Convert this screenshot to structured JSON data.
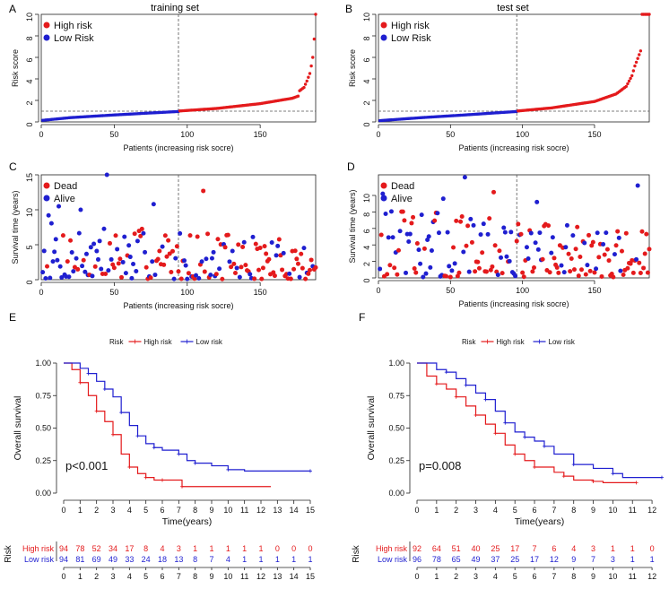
{
  "colors": {
    "high": "#e41a1c",
    "low": "#1f1fd0",
    "axis": "#222222",
    "ref": "#555555"
  },
  "panels": {
    "A": {
      "letter": "A",
      "title": "training set"
    },
    "B": {
      "letter": "B",
      "title": "test set"
    },
    "C": {
      "letter": "C"
    },
    "D": {
      "letter": "D"
    },
    "E": {
      "letter": "E"
    },
    "F": {
      "letter": "F"
    }
  },
  "chart_data": [
    {
      "id": "A",
      "type": "scatter",
      "title": "training set",
      "xlabel": "Patients (increasing risk socre)",
      "ylabel": "Risk score",
      "xlim": [
        0,
        188
      ],
      "ylim": [
        0,
        10
      ],
      "xticks": [
        "0",
        "50",
        "100",
        "150"
      ],
      "xtick_values": [
        0,
        50,
        100,
        150
      ],
      "yticks": [
        "0",
        "2",
        "4",
        "6",
        "8",
        "10"
      ],
      "ytick_values": [
        0,
        2,
        4,
        6,
        8,
        10
      ],
      "legend": [
        "High risk",
        "Low Risk"
      ],
      "cutoff_x": 94,
      "cutoff_y": 1.0,
      "n": 188,
      "series": [
        {
          "name": "Low Risk",
          "knots": [
            [
              1,
              0.15
            ],
            [
              20,
              0.4
            ],
            [
              50,
              0.65
            ],
            [
              94,
              0.97
            ]
          ]
        },
        {
          "name": "High risk",
          "knots": [
            [
              95,
              1.02
            ],
            [
              120,
              1.25
            ],
            [
              150,
              1.7
            ],
            [
              172,
              2.2
            ],
            [
              176,
              2.4
            ],
            [
              177,
              2.9
            ],
            [
              180,
              3.2
            ],
            [
              182,
              3.8
            ],
            [
              184,
              4.5
            ],
            [
              185,
              5.2
            ],
            [
              186,
              6.0
            ],
            [
              187,
              7.7
            ],
            [
              188,
              10.0
            ]
          ]
        }
      ]
    },
    {
      "id": "B",
      "type": "scatter",
      "title": "test set",
      "xlabel": "Patients (increasing risk socre)",
      "ylabel": "Risk score",
      "xlim": [
        0,
        188
      ],
      "ylim": [
        0,
        10
      ],
      "xticks": [
        "0",
        "50",
        "100",
        "150"
      ],
      "xtick_values": [
        0,
        50,
        100,
        150
      ],
      "yticks": [
        "0",
        "2",
        "4",
        "6",
        "8",
        "10"
      ],
      "ytick_values": [
        0,
        2,
        4,
        6,
        8,
        10
      ],
      "legend": [
        "High risk",
        "Low Risk"
      ],
      "cutoff_x": 96,
      "cutoff_y": 1.0,
      "n": 188,
      "series": [
        {
          "name": "Low Risk",
          "knots": [
            [
              1,
              0.12
            ],
            [
              30,
              0.4
            ],
            [
              60,
              0.65
            ],
            [
              96,
              0.97
            ]
          ]
        },
        {
          "name": "High risk",
          "knots": [
            [
              97,
              1.02
            ],
            [
              120,
              1.3
            ],
            [
              150,
              1.9
            ],
            [
              165,
              2.6
            ],
            [
              172,
              3.3
            ],
            [
              176,
              4.3
            ],
            [
              178,
              5.2
            ],
            [
              180,
              5.9
            ],
            [
              182,
              6.6
            ],
            [
              183,
              10.0
            ],
            [
              188,
              10.0
            ]
          ]
        }
      ]
    },
    {
      "id": "C",
      "type": "scatter",
      "xlabel": "Patients (increasing risk socre)",
      "ylabel": "Survival time (years)",
      "xlim": [
        0,
        188
      ],
      "ylim": [
        0,
        15
      ],
      "xticks": [
        "0",
        "50",
        "100",
        "150"
      ],
      "xtick_values": [
        0,
        50,
        100,
        150
      ],
      "yticks": [
        "0",
        "5",
        "10",
        "15"
      ],
      "ytick_values": [
        0,
        5,
        10,
        15
      ],
      "legend": [
        "Dead",
        "Alive"
      ],
      "cutoff_x": 94,
      "n": 188,
      "seed": 7,
      "ymax_typical": 8,
      "outliers": [
        [
          45,
          15,
          "alive"
        ],
        [
          111,
          12.7,
          "dead"
        ],
        [
          12,
          10.5,
          "alive"
        ],
        [
          27,
          10.0,
          "alive"
        ],
        [
          77,
          10.8,
          "alive"
        ],
        [
          5,
          9.2,
          "alive"
        ]
      ]
    },
    {
      "id": "D",
      "type": "scatter",
      "xlabel": "Patients (increasing risk socre)",
      "ylabel": "Survival time (years)",
      "xlim": [
        0,
        188
      ],
      "ylim": [
        0,
        12.5
      ],
      "xticks": [
        "0",
        "50",
        "100",
        "150"
      ],
      "xtick_values": [
        0,
        50,
        100,
        150
      ],
      "yticks": [
        "0",
        "2",
        "4",
        "6",
        "8",
        "10"
      ],
      "ytick_values": [
        0,
        2,
        4,
        6,
        8,
        10
      ],
      "legend": [
        "Dead",
        "Alive"
      ],
      "cutoff_x": 96,
      "n": 188,
      "seed": 13,
      "ymax_typical": 8,
      "outliers": [
        [
          60,
          12.2,
          "alive"
        ],
        [
          3,
          10.2,
          "alive"
        ],
        [
          80,
          10.4,
          "dead"
        ],
        [
          180,
          11.2,
          "alive"
        ],
        [
          45,
          9.6,
          "alive"
        ],
        [
          110,
          9.2,
          "alive"
        ]
      ]
    },
    {
      "id": "E",
      "type": "line",
      "subtype": "kaplan-meier",
      "xlabel": "Time(years)",
      "ylabel": "Overall survival",
      "xlim": [
        0,
        15
      ],
      "ylim": [
        0,
        1
      ],
      "xticks": [
        "0",
        "1",
        "2",
        "3",
        "4",
        "5",
        "6",
        "7",
        "8",
        "9",
        "10",
        "11",
        "12",
        "13",
        "14",
        "15"
      ],
      "yticks": [
        "0.00",
        "0.25",
        "0.50",
        "0.75",
        "1.00"
      ],
      "ytick_values": [
        0,
        0.25,
        0.5,
        0.75,
        1.0
      ],
      "legend_title": "Risk",
      "legend": [
        "High risk",
        "Low risk"
      ],
      "pvalue": "p<0.001",
      "series": [
        {
          "name": "High risk",
          "points": [
            [
              0,
              1.0
            ],
            [
              0.5,
              0.95
            ],
            [
              1,
              0.85
            ],
            [
              1.5,
              0.75
            ],
            [
              2,
              0.63
            ],
            [
              2.5,
              0.55
            ],
            [
              3,
              0.45
            ],
            [
              3.5,
              0.3
            ],
            [
              4,
              0.2
            ],
            [
              4.5,
              0.15
            ],
            [
              5,
              0.12
            ],
            [
              5.5,
              0.1
            ],
            [
              6,
              0.1
            ],
            [
              7,
              0.1
            ],
            [
              7.2,
              0.05
            ],
            [
              12.6,
              0.05
            ]
          ]
        },
        {
          "name": "Low risk",
          "points": [
            [
              0,
              1.0
            ],
            [
              1,
              0.96
            ],
            [
              1.5,
              0.92
            ],
            [
              2,
              0.86
            ],
            [
              2.5,
              0.8
            ],
            [
              3,
              0.74
            ],
            [
              3.5,
              0.62
            ],
            [
              4,
              0.52
            ],
            [
              4.5,
              0.44
            ],
            [
              5,
              0.38
            ],
            [
              5.5,
              0.35
            ],
            [
              6,
              0.33
            ],
            [
              7,
              0.3
            ],
            [
              7.5,
              0.25
            ],
            [
              8,
              0.23
            ],
            [
              9,
              0.21
            ],
            [
              10,
              0.18
            ],
            [
              11,
              0.17
            ],
            [
              15,
              0.17
            ]
          ]
        }
      ],
      "risk_table": {
        "label": "Risk",
        "rows": [
          {
            "name": "High risk",
            "values": [
              "94",
              "78",
              "52",
              "34",
              "17",
              "8",
              "4",
              "3",
              "1",
              "1",
              "1",
              "1",
              "1",
              "0",
              "0",
              "0"
            ]
          },
          {
            "name": "Low risk",
            "values": [
              "94",
              "81",
              "69",
              "49",
              "33",
              "24",
              "18",
              "13",
              "8",
              "7",
              "4",
              "1",
              "1",
              "1",
              "1",
              "1"
            ]
          }
        ]
      }
    },
    {
      "id": "F",
      "type": "line",
      "subtype": "kaplan-meier",
      "xlabel": "Time(years)",
      "ylabel": "Overall survival",
      "xlim": [
        0,
        12.5
      ],
      "ylim": [
        0,
        1
      ],
      "xticks": [
        "0",
        "1",
        "2",
        "3",
        "4",
        "5",
        "6",
        "7",
        "8",
        "9",
        "10",
        "11",
        "12"
      ],
      "yticks": [
        "0.00",
        "0.25",
        "0.50",
        "0.75",
        "1.00"
      ],
      "ytick_values": [
        0,
        0.25,
        0.5,
        0.75,
        1.0
      ],
      "legend_title": "Risk",
      "legend": [
        "High risk",
        "Low risk"
      ],
      "pvalue": "p=0.008",
      "series": [
        {
          "name": "High risk",
          "points": [
            [
              0,
              1.0
            ],
            [
              0.5,
              0.9
            ],
            [
              1,
              0.84
            ],
            [
              1.5,
              0.8
            ],
            [
              2,
              0.74
            ],
            [
              2.5,
              0.67
            ],
            [
              3,
              0.6
            ],
            [
              3.5,
              0.53
            ],
            [
              4,
              0.46
            ],
            [
              4.5,
              0.37
            ],
            [
              5,
              0.3
            ],
            [
              5.5,
              0.25
            ],
            [
              6,
              0.2
            ],
            [
              7,
              0.16
            ],
            [
              7.5,
              0.13
            ],
            [
              8,
              0.1
            ],
            [
              9,
              0.09
            ],
            [
              9.5,
              0.08
            ],
            [
              11.2,
              0.08
            ]
          ]
        },
        {
          "name": "Low risk",
          "points": [
            [
              0,
              1.0
            ],
            [
              1,
              0.95
            ],
            [
              1.5,
              0.93
            ],
            [
              2,
              0.88
            ],
            [
              2.5,
              0.83
            ],
            [
              3,
              0.77
            ],
            [
              3.5,
              0.72
            ],
            [
              4,
              0.63
            ],
            [
              4.5,
              0.54
            ],
            [
              5,
              0.47
            ],
            [
              5.5,
              0.43
            ],
            [
              6,
              0.4
            ],
            [
              6.5,
              0.36
            ],
            [
              7,
              0.3
            ],
            [
              8,
              0.22
            ],
            [
              9,
              0.19
            ],
            [
              10,
              0.15
            ],
            [
              10.5,
              0.12
            ],
            [
              12.5,
              0.12
            ]
          ]
        }
      ],
      "risk_table": {
        "label": "Risk",
        "rows": [
          {
            "name": "High risk",
            "values": [
              "92",
              "64",
              "51",
              "40",
              "25",
              "17",
              "7",
              "6",
              "4",
              "3",
              "1",
              "1",
              "0"
            ]
          },
          {
            "name": "Low risk",
            "values": [
              "96",
              "78",
              "65",
              "49",
              "37",
              "25",
              "17",
              "12",
              "9",
              "7",
              "3",
              "1",
              "1"
            ]
          }
        ]
      }
    }
  ]
}
